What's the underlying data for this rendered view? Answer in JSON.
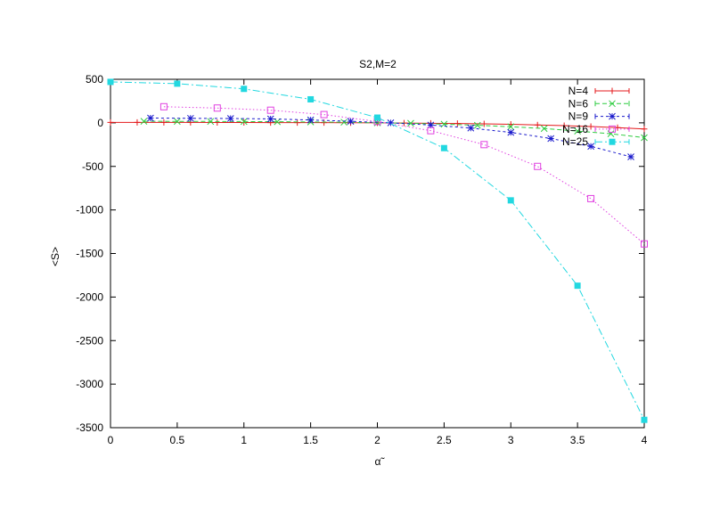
{
  "chart_data": {
    "type": "line",
    "title": "S2,M=2",
    "xlabel": "α̃",
    "ylabel": "<S>",
    "xlim": [
      0,
      4
    ],
    "ylim": [
      -3500,
      500
    ],
    "xticks": [
      {
        "v": 0,
        "label": "0"
      },
      {
        "v": 0.5,
        "label": "0.5"
      },
      {
        "v": 1,
        "label": "1"
      },
      {
        "v": 1.5,
        "label": "1.5"
      },
      {
        "v": 2,
        "label": "2"
      },
      {
        "v": 2.5,
        "label": "2.5"
      },
      {
        "v": 3,
        "label": "3"
      },
      {
        "v": 3.5,
        "label": "3.5"
      },
      {
        "v": 4,
        "label": "4"
      }
    ],
    "yticks": [
      {
        "v": 500,
        "label": "500"
      },
      {
        "v": 0,
        "label": "0"
      },
      {
        "v": -500,
        "label": "-500"
      },
      {
        "v": -1000,
        "label": "-1000"
      },
      {
        "v": -1500,
        "label": "-1500"
      },
      {
        "v": -2000,
        "label": "-2000"
      },
      {
        "v": -2500,
        "label": "-2500"
      },
      {
        "v": -3000,
        "label": "-3000"
      },
      {
        "v": -3500,
        "label": "-3500"
      }
    ],
    "grid": false,
    "legend_position": "top-right",
    "series": [
      {
        "name": "N=4",
        "color": "#e41a1c",
        "marker": "plus",
        "x": [
          0,
          0.2,
          0.4,
          0.6,
          0.8,
          1.0,
          1.2,
          1.4,
          1.6,
          1.8,
          2.0,
          2.2,
          2.4,
          2.6,
          2.8,
          3.0,
          3.2,
          3.4,
          3.6,
          3.8,
          4.0
        ],
        "y": [
          5,
          5,
          5,
          5,
          4,
          4,
          3,
          3,
          2,
          1,
          0,
          -2,
          -5,
          -8,
          -12,
          -17,
          -24,
          -32,
          -42,
          -55,
          -70
        ]
      },
      {
        "name": "N=6",
        "color": "#2ecc40",
        "marker": "cross",
        "x": [
          0.25,
          0.5,
          0.75,
          1.0,
          1.25,
          1.5,
          1.75,
          2.0,
          2.25,
          2.5,
          2.75,
          3.0,
          3.25,
          3.5,
          3.75,
          4.0
        ],
        "y": [
          18,
          17,
          16,
          15,
          13,
          10,
          7,
          0,
          -5,
          -15,
          -28,
          -45,
          -65,
          -95,
          -125,
          -170
        ]
      },
      {
        "name": "N=9",
        "color": "#1a1acc",
        "marker": "star",
        "x": [
          0.3,
          0.6,
          0.9,
          1.2,
          1.5,
          1.8,
          2.1,
          2.4,
          2.7,
          3.0,
          3.3,
          3.6,
          3.9
        ],
        "y": [
          55,
          52,
          50,
          45,
          33,
          18,
          0,
          -25,
          -60,
          -110,
          -180,
          -270,
          -390
        ]
      },
      {
        "name": "N=16",
        "color": "#e040e0",
        "marker": "open-square",
        "x": [
          0.4,
          0.8,
          1.2,
          1.6,
          2.0,
          2.4,
          2.8,
          3.2,
          3.6,
          4.0
        ],
        "y": [
          185,
          170,
          145,
          95,
          15,
          -90,
          -250,
          -500,
          -870,
          -1390
        ]
      },
      {
        "name": "N=25",
        "color": "#22d8e0",
        "marker": "filled-square",
        "x": [
          0,
          0.5,
          1.0,
          1.5,
          2.0,
          2.5,
          3.0,
          3.5,
          4.0
        ],
        "y": [
          470,
          450,
          390,
          270,
          60,
          -290,
          -890,
          -1870,
          -3410
        ]
      }
    ]
  }
}
